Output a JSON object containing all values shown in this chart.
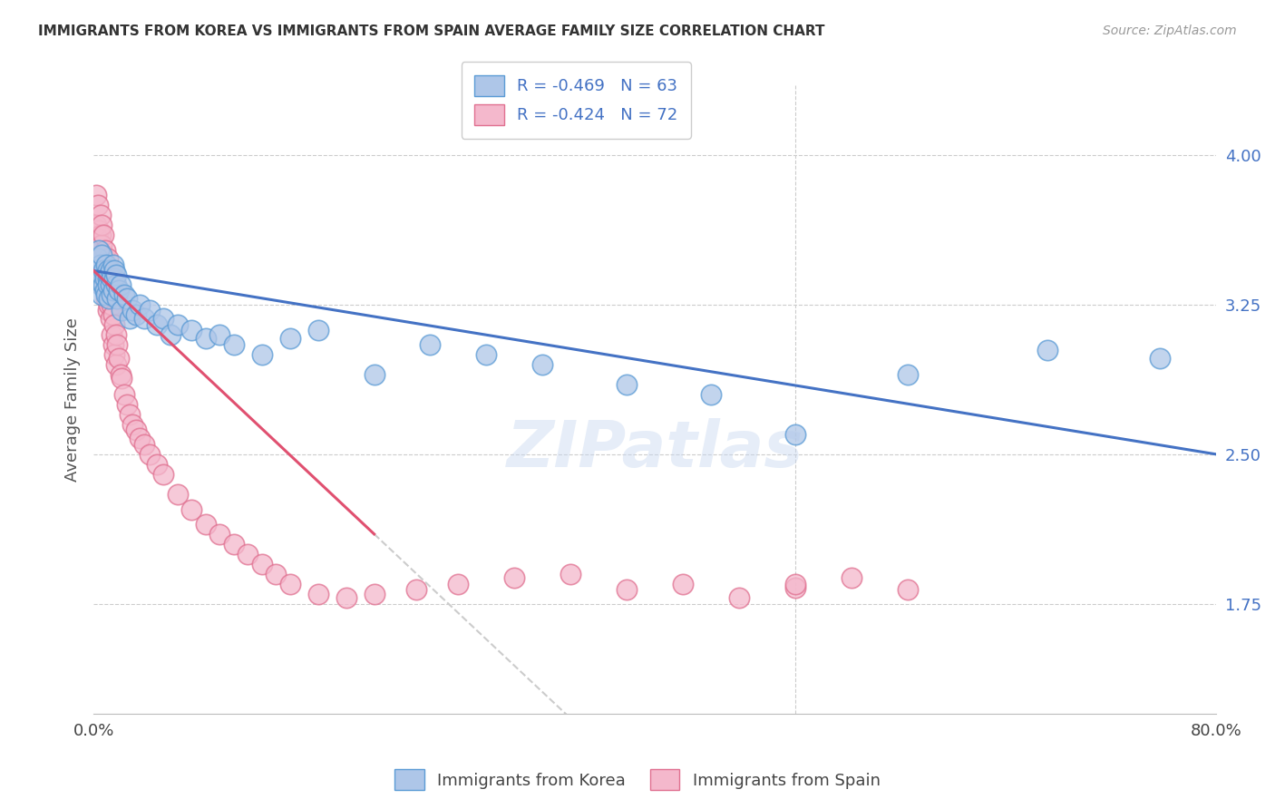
{
  "title": "IMMIGRANTS FROM KOREA VS IMMIGRANTS FROM SPAIN AVERAGE FAMILY SIZE CORRELATION CHART",
  "source": "Source: ZipAtlas.com",
  "ylabel": "Average Family Size",
  "xlim": [
    0,
    0.8
  ],
  "ylim": [
    1.2,
    4.35
  ],
  "yticks": [
    1.75,
    2.5,
    3.25,
    4.0
  ],
  "right_ytick_color": "#4472c4",
  "korea_color": "#aec6e8",
  "spain_color": "#f4b8cc",
  "korea_edge": "#5b9bd5",
  "spain_edge": "#e07090",
  "trendline_korea_color": "#4472c4",
  "trendline_spain_color": "#e05070",
  "trendline_spain_dashed_color": "#cccccc",
  "watermark": "ZIPatlas",
  "korea_R": -0.469,
  "korea_N": 63,
  "spain_R": -0.424,
  "spain_N": 72,
  "korea_points_x": [
    0.002,
    0.003,
    0.004,
    0.004,
    0.005,
    0.005,
    0.006,
    0.006,
    0.006,
    0.007,
    0.007,
    0.008,
    0.008,
    0.009,
    0.009,
    0.01,
    0.01,
    0.01,
    0.011,
    0.011,
    0.012,
    0.012,
    0.013,
    0.013,
    0.014,
    0.014,
    0.015,
    0.015,
    0.016,
    0.016,
    0.017,
    0.018,
    0.019,
    0.02,
    0.022,
    0.024,
    0.026,
    0.028,
    0.03,
    0.033,
    0.036,
    0.04,
    0.045,
    0.05,
    0.055,
    0.06,
    0.07,
    0.08,
    0.09,
    0.1,
    0.12,
    0.14,
    0.16,
    0.2,
    0.24,
    0.28,
    0.32,
    0.38,
    0.44,
    0.5,
    0.58,
    0.68,
    0.76
  ],
  "korea_points_y": [
    3.42,
    3.48,
    3.38,
    3.52,
    3.35,
    3.45,
    3.3,
    3.4,
    3.5,
    3.35,
    3.42,
    3.38,
    3.32,
    3.45,
    3.3,
    3.38,
    3.42,
    3.35,
    3.4,
    3.28,
    3.35,
    3.42,
    3.3,
    3.38,
    3.45,
    3.32,
    3.38,
    3.42,
    3.35,
    3.4,
    3.28,
    3.32,
    3.35,
    3.22,
    3.3,
    3.28,
    3.18,
    3.22,
    3.2,
    3.25,
    3.18,
    3.22,
    3.15,
    3.18,
    3.1,
    3.15,
    3.12,
    3.08,
    3.1,
    3.05,
    3.0,
    3.08,
    3.12,
    2.9,
    3.05,
    3.0,
    2.95,
    2.85,
    2.8,
    2.6,
    2.9,
    3.02,
    2.98
  ],
  "spain_points_x": [
    0.002,
    0.002,
    0.003,
    0.003,
    0.004,
    0.004,
    0.005,
    0.005,
    0.005,
    0.006,
    0.006,
    0.006,
    0.007,
    0.007,
    0.007,
    0.008,
    0.008,
    0.008,
    0.009,
    0.009,
    0.01,
    0.01,
    0.01,
    0.011,
    0.011,
    0.012,
    0.012,
    0.013,
    0.013,
    0.014,
    0.014,
    0.015,
    0.015,
    0.016,
    0.016,
    0.017,
    0.018,
    0.019,
    0.02,
    0.022,
    0.024,
    0.026,
    0.028,
    0.03,
    0.033,
    0.036,
    0.04,
    0.045,
    0.05,
    0.06,
    0.07,
    0.08,
    0.09,
    0.1,
    0.11,
    0.12,
    0.13,
    0.14,
    0.16,
    0.18,
    0.2,
    0.23,
    0.26,
    0.3,
    0.34,
    0.38,
    0.42,
    0.46,
    0.5,
    0.54,
    0.58,
    0.5
  ],
  "spain_points_y": [
    3.8,
    3.65,
    3.75,
    3.58,
    3.62,
    3.52,
    3.7,
    3.48,
    3.6,
    3.55,
    3.42,
    3.65,
    3.5,
    3.38,
    3.6,
    3.45,
    3.32,
    3.52,
    3.42,
    3.28,
    3.38,
    3.48,
    3.22,
    3.35,
    3.25,
    3.3,
    3.18,
    3.25,
    3.1,
    3.2,
    3.05,
    3.15,
    3.0,
    3.1,
    2.95,
    3.05,
    2.98,
    2.9,
    2.88,
    2.8,
    2.75,
    2.7,
    2.65,
    2.62,
    2.58,
    2.55,
    2.5,
    2.45,
    2.4,
    2.3,
    2.22,
    2.15,
    2.1,
    2.05,
    2.0,
    1.95,
    1.9,
    1.85,
    1.8,
    1.78,
    1.8,
    1.82,
    1.85,
    1.88,
    1.9,
    1.82,
    1.85,
    1.78,
    1.83,
    1.88,
    1.82,
    1.85
  ]
}
